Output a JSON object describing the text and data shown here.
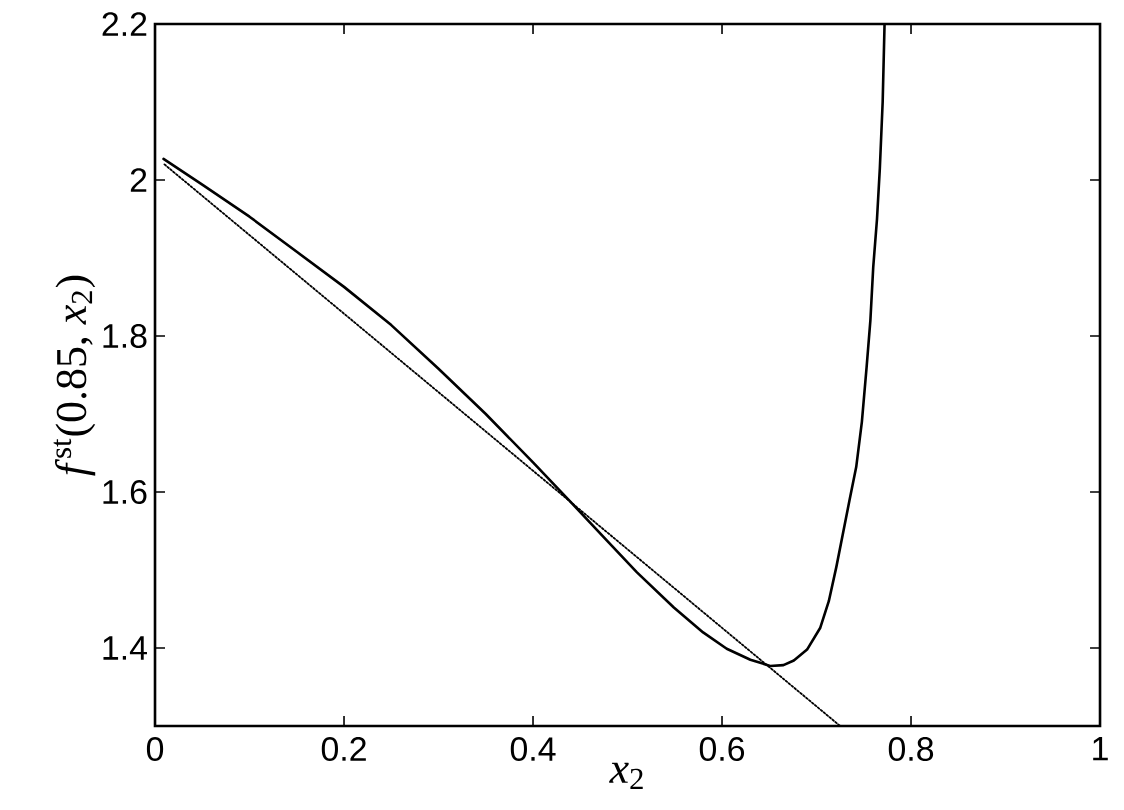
{
  "chart_data": {
    "type": "line",
    "xlabel": "*x*$_{2}$",
    "ylabel": "*f*$^{st}$(0.85, *x*$_{2}$)",
    "xlim": [
      0,
      1
    ],
    "ylim": [
      1.3,
      2.2
    ],
    "xticks": [
      0,
      0.2,
      0.4,
      0.6,
      0.8,
      1
    ],
    "yticks": [
      1.4,
      1.6,
      1.8,
      2,
      2.2
    ],
    "marker": "none",
    "series": [
      {
        "color": "#000000",
        "line_style": "solid",
        "x": [
          0.009,
          0.05,
          0.1,
          0.15,
          0.2,
          0.25,
          0.3,
          0.35,
          0.4,
          0.44,
          0.478,
          0.51,
          0.549,
          0.58,
          0.605,
          0.63,
          0.651,
          0.665,
          0.676,
          0.69,
          0.704,
          0.713,
          0.721,
          0.728,
          0.735,
          0.742,
          0.748,
          0.753,
          0.757,
          0.76,
          0.764,
          0.767,
          0.77,
          0.772
        ],
        "values": [
          2.027,
          1.994,
          1.953,
          1.908,
          1.863,
          1.814,
          1.758,
          1.7,
          1.638,
          1.587,
          1.538,
          1.497,
          1.452,
          1.42,
          1.399,
          1.385,
          1.377,
          1.378,
          1.384,
          1.398,
          1.426,
          1.46,
          1.504,
          1.547,
          1.59,
          1.632,
          1.69,
          1.76,
          1.82,
          1.888,
          1.95,
          2.015,
          2.1,
          2.2
        ]
      },
      {
        "color": "#000000",
        "line_style": "dotted",
        "x": [
          0.01,
          0.725
        ],
        "values": [
          2.02,
          1.3
        ]
      }
    ]
  }
}
